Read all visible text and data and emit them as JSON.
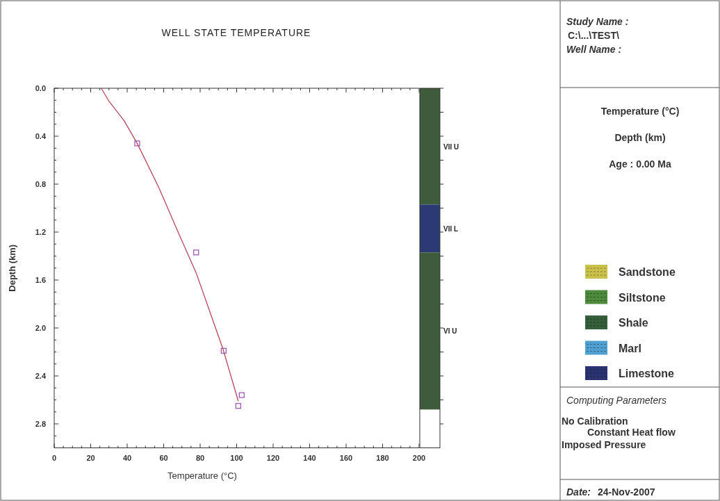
{
  "chart_data": [
    {
      "type": "line",
      "title": "WELL STATE TEMPERATURE",
      "xlabel": "Temperature (°C)",
      "ylabel": "Depth (km)",
      "xlim": [
        0,
        200
      ],
      "ylim": [
        3.0,
        0.0
      ],
      "xticks": [
        0,
        {
          "value": 5,
          "label": null
        },
        {
          "value": 10,
          "label": null
        },
        {
          "value": 15,
          "label": null
        },
        20,
        {
          "value": 25,
          "label": null
        },
        {
          "value": 30,
          "label": null
        },
        {
          "value": 35,
          "label": null
        },
        40,
        {
          "value": 45,
          "label": null
        },
        {
          "value": 50,
          "label": null
        },
        {
          "value": 55,
          "label": null
        },
        60,
        {
          "value": 65,
          "label": null
        },
        {
          "value": 70,
          "label": null
        },
        {
          "value": 75,
          "label": null
        },
        80,
        {
          "value": 85,
          "label": null
        },
        {
          "value": 90,
          "label": null
        },
        {
          "value": 95,
          "label": null
        },
        100,
        {
          "value": 105,
          "label": null
        },
        {
          "value": 110,
          "label": null
        },
        {
          "value": 115,
          "label": null
        },
        120,
        {
          "value": 125,
          "label": null
        },
        {
          "value": 130,
          "label": null
        },
        {
          "value": 135,
          "label": null
        },
        140,
        {
          "value": 145,
          "label": null
        },
        {
          "value": 150,
          "label": null
        },
        {
          "value": 155,
          "label": null
        },
        160,
        {
          "value": 165,
          "label": null
        },
        {
          "value": 170,
          "label": null
        },
        {
          "value": 175,
          "label": null
        },
        180,
        {
          "value": 185,
          "label": null
        },
        {
          "value": 190,
          "label": null
        },
        {
          "value": 195,
          "label": null
        },
        200
      ],
      "yticks": [
        {
          "value": 0,
          "label": "0.0"
        },
        {
          "value": 0.1,
          "label": null
        },
        {
          "value": 0.2,
          "label": null
        },
        {
          "value": 0.3,
          "label": null
        },
        0.4,
        {
          "value": 0.5,
          "label": null
        },
        {
          "value": 0.6,
          "label": null
        },
        {
          "value": 0.7,
          "label": null
        },
        0.8,
        {
          "value": 0.9,
          "label": null
        },
        {
          "value": 1.0,
          "label": null
        },
        {
          "value": 1.1,
          "label": null
        },
        1.2,
        {
          "value": 1.3,
          "label": null
        },
        {
          "value": 1.4,
          "label": null
        },
        {
          "value": 1.5,
          "label": null
        },
        1.6,
        {
          "value": 1.7,
          "label": null
        },
        {
          "value": 1.8,
          "label": null
        },
        {
          "value": 1.9,
          "label": null
        },
        {
          "value": 2.0,
          "label": "2.0"
        },
        {
          "value": 2.1,
          "label": null
        },
        {
          "value": 2.2,
          "label": null
        },
        {
          "value": 2.3,
          "label": null
        },
        2.4,
        {
          "value": 2.5,
          "label": null
        },
        {
          "value": 2.6,
          "label": null
        },
        {
          "value": 2.7,
          "label": null
        },
        2.8,
        {
          "value": 2.9,
          "label": null
        }
      ],
      "grid": false,
      "series": [
        {
          "type": "line",
          "color": "#b8465a",
          "x": [
            25.8,
            30.1,
            38.3,
            45.5,
            57.4,
            68.2,
            77.8,
            85.9,
            92.6,
            100.9
          ],
          "values": [
            0.0,
            0.11,
            0.27,
            0.46,
            0.83,
            1.21,
            1.54,
            1.89,
            2.18,
            2.61
          ]
        },
        {
          "type": "scatter",
          "marker": "square",
          "color": "#9b4fb0",
          "x": [
            45.5,
            77.8,
            92.9,
            102.8,
            100.9
          ],
          "values": [
            0.46,
            1.37,
            2.19,
            2.56,
            2.65
          ]
        }
      ]
    },
    {
      "type": "bar",
      "stacked": true,
      "categories": [
        null
      ],
      "ylim": [
        3.0,
        0.0
      ],
      "yticks": [
        0,
        0.2,
        0.4,
        0.6,
        0.8,
        1.0,
        1.2,
        1.4,
        1.6,
        1.8,
        2.0,
        2.2,
        2.4,
        2.6,
        2.8
      ],
      "tick_labels": false,
      "series": [
        {
          "name": "VII U",
          "color": "#3e5b3c",
          "values": [
            0.97
          ]
        },
        {
          "name": "VII L",
          "color": "#2b3a72",
          "values": [
            0.4
          ]
        },
        {
          "name": "VI U",
          "color": "#3e5b3c",
          "values": [
            1.31
          ]
        }
      ]
    },
    {
      "type": "other",
      "categories": [
        "Sandstone",
        "Siltstone",
        "Shale",
        "Marl",
        "Limestone"
      ],
      "colors": [
        "#c9c24a",
        "#4e8a3c",
        "#355e3a",
        "#4f9fd0",
        "#2b3470"
      ],
      "annotations": [
        "Study Name :",
        "C:\\...\\TEST\\",
        "Well Name :",
        "Temperature (°C)",
        "Depth (km)",
        "Age : 0.00 Ma",
        "Computing Parameters",
        "No Calibration",
        "Constant Heat flow",
        "Imposed Pressure",
        "Date:",
        "24-Nov-2007"
      ]
    }
  ]
}
